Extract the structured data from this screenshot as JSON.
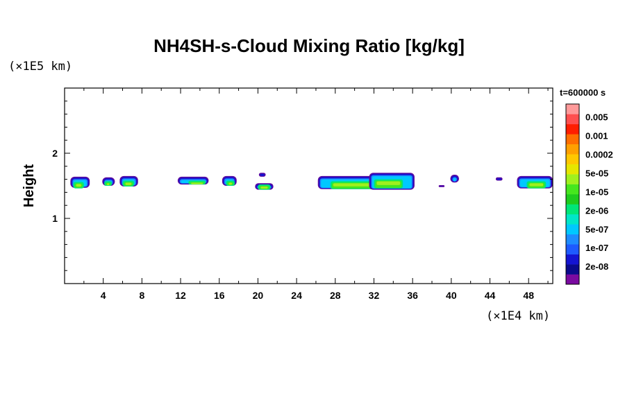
{
  "chart_data": {
    "type": "heatmap",
    "title": "NH4SH-s-Cloud Mixing Ratio [kg/kg]",
    "xlabel": "",
    "ylabel": "Height",
    "x_unit": "(×1E4 km)",
    "y_unit": "(×1E5 km)",
    "time_label": "t=600000 s",
    "xlim": [
      0,
      50.5
    ],
    "ylim": [
      0,
      3
    ],
    "xticks": [
      4,
      8,
      12,
      16,
      20,
      24,
      28,
      32,
      36,
      40,
      44,
      48
    ],
    "yticks": [
      1,
      2
    ],
    "colorbar": {
      "labels": [
        "0.005",
        "0.001",
        "0.0002",
        "5e-05",
        "1e-05",
        "2e-06",
        "5e-07",
        "1e-07",
        "2e-08"
      ],
      "colors": [
        "#7a0aa0",
        "#0a0a8c",
        "#1414d2",
        "#1e5aff",
        "#1e8cff",
        "#00c8ff",
        "#00e6c8",
        "#00e678",
        "#1ecc1e",
        "#46e61e",
        "#a0f01e",
        "#e6e600",
        "#ffc800",
        "#ffa000",
        "#ff6e00",
        "#ff1e00",
        "#ff5050",
        "#ff9a9a"
      ]
    },
    "clouds": [
      {
        "x0": 0.6,
        "x1": 2.6,
        "y0": 1.47,
        "y1": 1.64,
        "core": [
          0.9,
          2.0,
          1.46,
          1.56
        ]
      },
      {
        "x0": 3.9,
        "x1": 5.2,
        "y0": 1.5,
        "y1": 1.63,
        "core": [
          4.1,
          4.9,
          1.5,
          1.57
        ]
      },
      {
        "x0": 5.7,
        "x1": 7.6,
        "y0": 1.49,
        "y1": 1.65,
        "core": [
          6.0,
          7.2,
          1.49,
          1.58
        ]
      },
      {
        "x0": 11.7,
        "x1": 14.9,
        "y0": 1.52,
        "y1": 1.64,
        "core": [
          12.8,
          14.6,
          1.52,
          1.58
        ]
      },
      {
        "x0": 16.3,
        "x1": 17.8,
        "y0": 1.5,
        "y1": 1.65,
        "core": [
          16.7,
          17.6,
          1.5,
          1.58
        ]
      },
      {
        "x0": 19.7,
        "x1": 21.6,
        "y0": 1.44,
        "y1": 1.54,
        "core": [
          20.0,
          21.3,
          1.44,
          1.52
        ]
      },
      {
        "x0": 20.1,
        "x1": 20.8,
        "y0": 1.64,
        "y1": 1.7,
        "core": null
      },
      {
        "x0": 26.2,
        "x1": 32.5,
        "y0": 1.45,
        "y1": 1.65,
        "core": [
          27.5,
          32.0,
          1.45,
          1.57
        ]
      },
      {
        "x0": 31.5,
        "x1": 36.2,
        "y0": 1.44,
        "y1": 1.7,
        "core": [
          32.0,
          35.0,
          1.46,
          1.6
        ]
      },
      {
        "x0": 39.9,
        "x1": 40.8,
        "y0": 1.55,
        "y1": 1.67,
        "core": null
      },
      {
        "x0": 44.6,
        "x1": 45.3,
        "y0": 1.58,
        "y1": 1.63,
        "core": null
      },
      {
        "x0": 38.7,
        "x1": 39.3,
        "y0": 1.48,
        "y1": 1.51,
        "core": null
      },
      {
        "x0": 46.8,
        "x1": 50.5,
        "y0": 1.46,
        "y1": 1.65,
        "core": [
          47.8,
          49.8,
          1.46,
          1.57
        ]
      }
    ]
  }
}
